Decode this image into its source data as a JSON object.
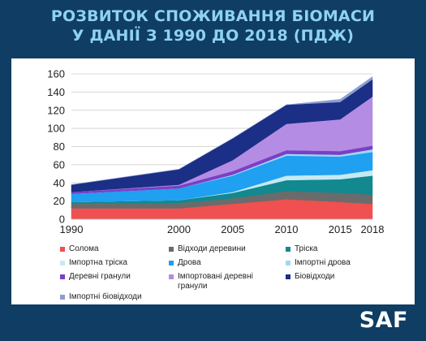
{
  "header": {
    "title_line1": "РОЗВИТОК СПОЖИВАННЯ БІОМАСИ",
    "title_line2": "У ДАНІЇ З 1990 ДО 2018 (ПДЖ)"
  },
  "logo": {
    "text": "SAF"
  },
  "chart_data": {
    "type": "area",
    "stacked": true,
    "x": [
      1990,
      2000,
      2005,
      2010,
      2015,
      2018
    ],
    "xticks": [
      "1990",
      "2000",
      "2005",
      "2010",
      "2015",
      "2018"
    ],
    "yticks": [
      "0",
      "20",
      "40",
      "60",
      "80",
      "100",
      "120",
      "140",
      "160"
    ],
    "ylim": [
      0,
      160
    ],
    "grid": true,
    "legend_position": "bottom",
    "series": [
      {
        "name": "Солома",
        "color": "#f0504f",
        "values": [
          12,
          12,
          17,
          22,
          19,
          17
        ]
      },
      {
        "name": "Відходи деревини",
        "color": "#6b6b6b",
        "values": [
          6,
          6,
          6,
          9,
          10,
          10
        ]
      },
      {
        "name": "Тріска",
        "color": "#12888f",
        "values": [
          1,
          3,
          6,
          12,
          15,
          21
        ]
      },
      {
        "name": "Імпортна тріска",
        "color": "#c7e9f2",
        "values": [
          0,
          0,
          1,
          5,
          5,
          6
        ]
      },
      {
        "name": "Дрова",
        "color": "#1fa0f0",
        "values": [
          9,
          13,
          18,
          22,
          20,
          20
        ]
      },
      {
        "name": "Імпортні дрова",
        "color": "#9fd7f5",
        "values": [
          0,
          0,
          1,
          2,
          2,
          3
        ]
      },
      {
        "name": "Деревні гранули",
        "color": "#7a3fc7",
        "values": [
          2,
          3,
          4,
          4,
          4,
          4
        ]
      },
      {
        "name": "Імпортовані деревні гранули",
        "color": "#b58ce3",
        "values": [
          0,
          1,
          12,
          29,
          35,
          54
        ]
      },
      {
        "name": "Біовідходи",
        "color": "#1a2f85",
        "values": [
          8,
          17,
          24,
          21,
          19,
          19
        ]
      },
      {
        "name": "Імпортні біовідходи",
        "color": "#8a9fd0",
        "values": [
          0,
          0,
          0,
          0,
          3,
          3
        ]
      }
    ]
  }
}
